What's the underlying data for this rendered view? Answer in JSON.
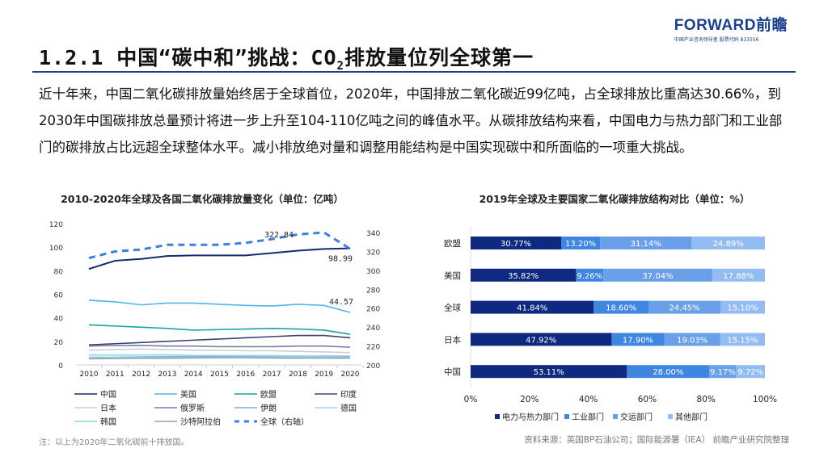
{
  "logo": {
    "brand": "FORWARD前瞻",
    "tagline": "中国产业咨询领导者  股票代码 833556"
  },
  "title": {
    "prefix": "1.2.1 中国“碳中和”挑战：CO",
    "sub": "2",
    "suffix": "排放量位列全球第一"
  },
  "paragraph": "近十年来，中国二氧化碳排放量始终居于全球首位，2020年，中国排放二氧化碳近99亿吨，占全球排放比重高达30.66%，到2030年中国碳排放总量预计将进一步上升至104-110亿吨之间的峰值水平。从碳排放结构来看，中国电力与热力部门和工业部门的碳排放占比远超全球整体水平。减小排放绝对量和调整用能结构是中国实现碳中和所面临的一项重大挑战。",
  "note": "注：以上为2020年二氧化碳前十排放国。",
  "source": "资料来源：英国BP石油公司；国际能源署（IEA） 前瞻产业研究院整理",
  "chart_data": [
    {
      "type": "line",
      "title": "2010-2020年全球及各国二氧化碳排放量变化（单位：亿吨）",
      "x": [
        2010,
        2011,
        2012,
        2013,
        2014,
        2015,
        2016,
        2017,
        2018,
        2019,
        2020
      ],
      "ylim": [
        0,
        120
      ],
      "yticks": [
        0,
        20,
        40,
        60,
        80,
        100,
        120
      ],
      "y2lim": [
        200,
        340
      ],
      "y2ticks": [
        200,
        220,
        240,
        260,
        280,
        300,
        320,
        340
      ],
      "legend_position": "bottom",
      "series": [
        {
          "name": "中国",
          "color": "#142a6e",
          "values": [
            81.5,
            88.5,
            90,
            92.5,
            93,
            93,
            93,
            95,
            97,
            98.5,
            98.99
          ]
        },
        {
          "name": "美国",
          "color": "#4fb4e8",
          "values": [
            55,
            53.5,
            51,
            52.5,
            52.5,
            51.5,
            50.5,
            50,
            51.5,
            50.5,
            44.57
          ]
        },
        {
          "name": "欧盟",
          "color": "#17a3a3",
          "values": [
            34,
            33,
            32,
            31,
            29.5,
            30,
            30.5,
            31,
            30.5,
            29.5,
            26
          ]
        },
        {
          "name": "印度",
          "color": "#3a4470",
          "values": [
            17,
            18,
            19,
            20,
            21,
            22,
            23,
            24,
            25,
            25,
            23
          ]
        },
        {
          "name": "日本",
          "color": "#cfcfcf",
          "values": [
            12.5,
            13,
            13.5,
            13,
            12.5,
            12.5,
            12,
            12,
            11.5,
            11,
            10.5
          ]
        },
        {
          "name": "俄罗斯",
          "color": "#7a7fa3",
          "values": [
            16,
            16.5,
            16.5,
            16,
            16,
            15.5,
            15.5,
            15.5,
            16,
            16,
            15
          ]
        },
        {
          "name": "伊朗",
          "color": "#8aa5e6",
          "values": [
            6.5,
            6.5,
            6.8,
            7,
            7,
            7,
            7.2,
            7.3,
            7.5,
            7.5,
            7.3
          ]
        },
        {
          "name": "德国",
          "color": "#8fd8f2",
          "values": [
            8.5,
            8.3,
            8.4,
            8.5,
            8,
            8,
            8,
            7.9,
            7.5,
            7,
            6.5
          ]
        },
        {
          "name": "韩国",
          "color": "#8ed6d0",
          "values": [
            6.2,
            6.3,
            6.3,
            6.3,
            6.3,
            6.4,
            6.5,
            6.5,
            6.7,
            6.4,
            6.0
          ]
        },
        {
          "name": "沙特阿拉伯",
          "color": "#9ba0b0",
          "values": [
            5.2,
            5.4,
            5.6,
            5.6,
            5.9,
            6,
            6,
            5.9,
            5.8,
            5.8,
            5.7
          ]
        },
        {
          "name": "全球（右轴）",
          "color": "#3f7fe0",
          "dashed": true,
          "axis": "right",
          "values": [
            313,
            320,
            322,
            327,
            327,
            327,
            329,
            333,
            338,
            340,
            322.84
          ]
        }
      ],
      "annotations": [
        {
          "series": "全球（右轴）",
          "label": "322.84"
        },
        {
          "series": "中国",
          "label": "98.99"
        },
        {
          "series": "美国",
          "label": "44.57"
        }
      ]
    },
    {
      "type": "bar",
      "stacked": true,
      "orientation": "horizontal",
      "title": "2019年全球及主要国家二氧化碳排放结构对比（单位：%）",
      "categories": [
        "欧盟",
        "美国",
        "全球",
        "日本",
        "中国"
      ],
      "xticks": [
        "0%",
        "20%",
        "40%",
        "60%",
        "80%",
        "100%"
      ],
      "xlim": [
        0,
        100
      ],
      "legend_position": "bottom",
      "series": [
        {
          "name": "电力与热力部门",
          "color": "#0d2a80",
          "values": [
            30.77,
            35.82,
            41.84,
            47.92,
            53.11
          ]
        },
        {
          "name": "工业部门",
          "color": "#3f86e0",
          "values": [
            13.2,
            9.26,
            18.6,
            17.9,
            28.0
          ]
        },
        {
          "name": "交运部门",
          "color": "#6aa0e8",
          "values": [
            31.14,
            37.04,
            24.45,
            19.03,
            9.17
          ]
        },
        {
          "name": "其他部门",
          "color": "#93bdf2",
          "values": [
            24.89,
            17.88,
            15.1,
            15.15,
            9.72
          ]
        }
      ]
    }
  ]
}
